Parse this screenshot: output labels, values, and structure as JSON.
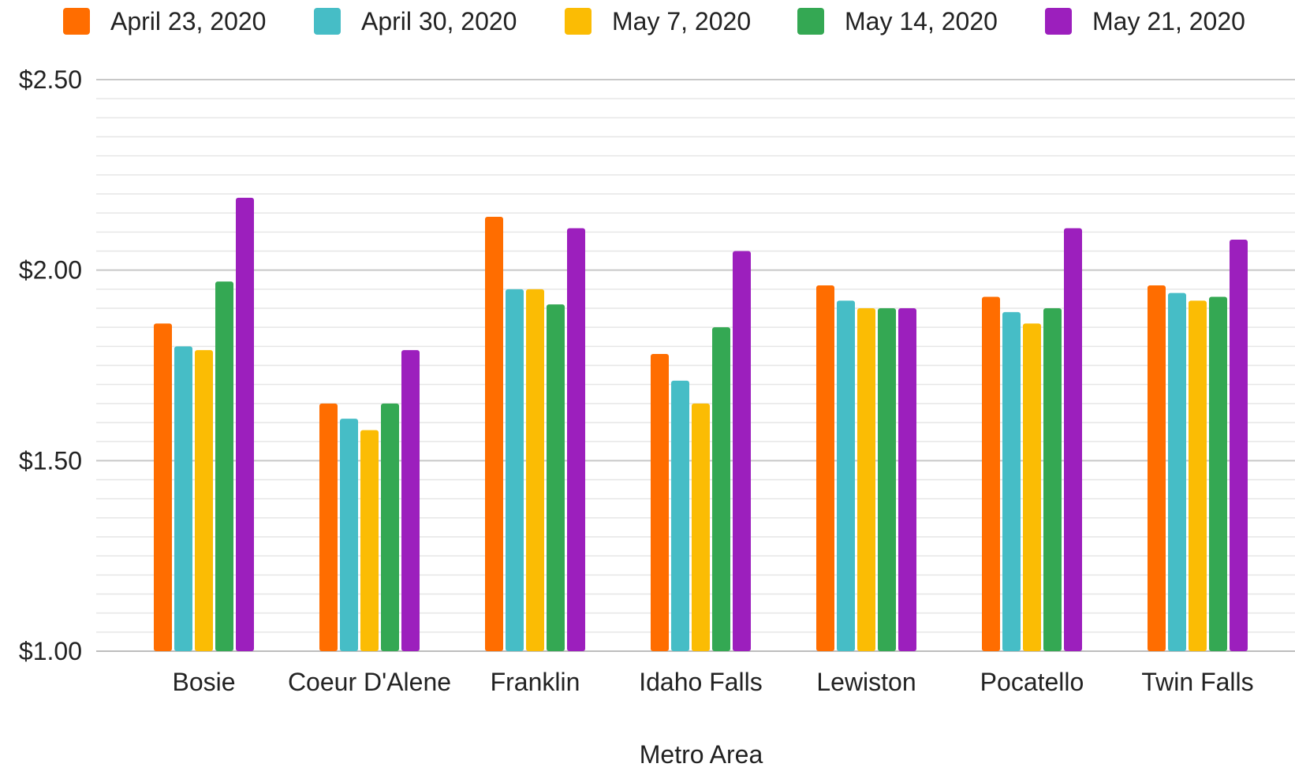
{
  "chart_data": {
    "type": "bar",
    "title": "",
    "xlabel": "Metro Area",
    "ylabel": "",
    "ylim": [
      1.0,
      2.5
    ],
    "y_ticks": [
      "$1.00",
      "$1.50",
      "$2.00",
      "$2.50"
    ],
    "y_tick_values": [
      1.0,
      1.5,
      2.0,
      2.5
    ],
    "grid": true,
    "legend_position": "top",
    "categories": [
      "Bosie",
      "Coeur D'Alene",
      "Franklin",
      "Idaho Falls",
      "Lewiston",
      "Pocatello",
      "Twin Falls"
    ],
    "series": [
      {
        "name": "April 23, 2020",
        "color": "#ff6d00",
        "values": [
          1.86,
          1.65,
          2.14,
          1.78,
          1.96,
          1.93,
          1.96
        ]
      },
      {
        "name": "April 30, 2020",
        "color": "#46bdc6",
        "values": [
          1.8,
          1.61,
          1.95,
          1.71,
          1.92,
          1.89,
          1.94
        ]
      },
      {
        "name": "May 7, 2020",
        "color": "#fbbc04",
        "values": [
          1.79,
          1.58,
          1.95,
          1.65,
          1.9,
          1.86,
          1.92
        ]
      },
      {
        "name": "May 14, 2020",
        "color": "#34a853",
        "values": [
          1.97,
          1.65,
          1.91,
          1.85,
          1.9,
          1.9,
          1.93
        ]
      },
      {
        "name": "May 21, 2020",
        "color": "#9c1fbd",
        "values": [
          2.19,
          1.79,
          2.11,
          2.05,
          1.9,
          2.11,
          2.08
        ]
      }
    ]
  }
}
